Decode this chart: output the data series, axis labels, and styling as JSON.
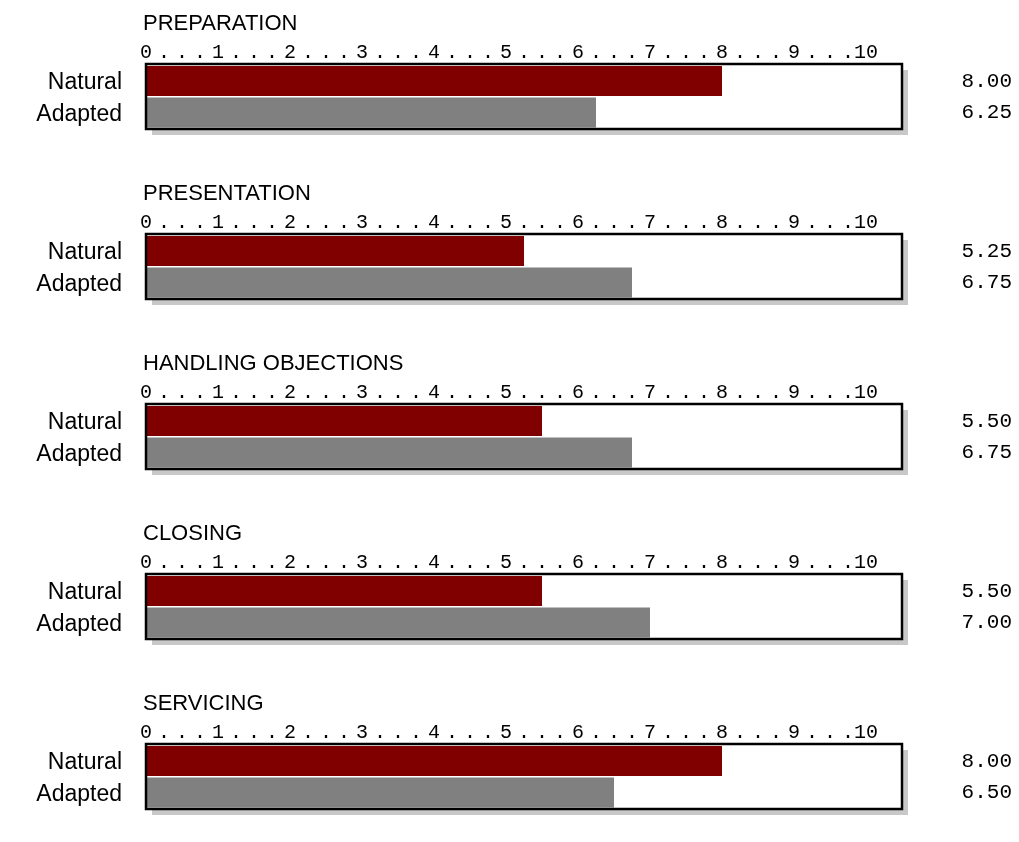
{
  "chart_data": [
    {
      "type": "bar",
      "orientation": "horizontal",
      "title": "PREPARATION",
      "categories": [
        "Natural",
        "Adapted"
      ],
      "values": [
        8.0,
        6.25
      ],
      "value_labels": [
        "8.00",
        "6.25"
      ],
      "colors": [
        "#800000",
        "#808080"
      ],
      "xlim": [
        0,
        10.5
      ],
      "xticks": [
        0,
        {
          "value": 0.25,
          "label": "."
        },
        {
          "value": 0.5,
          "label": "."
        },
        {
          "value": 0.75,
          "label": "."
        },
        1,
        {
          "value": 1.25,
          "label": "."
        },
        {
          "value": 1.5,
          "label": "."
        },
        {
          "value": 1.75,
          "label": "."
        },
        2,
        {
          "value": 2.25,
          "label": "."
        },
        {
          "value": 2.5,
          "label": "."
        },
        {
          "value": 2.75,
          "label": "."
        },
        3,
        {
          "value": 3.25,
          "label": "."
        },
        {
          "value": 3.5,
          "label": "."
        },
        {
          "value": 3.75,
          "label": "."
        },
        4,
        {
          "value": 4.25,
          "label": "."
        },
        {
          "value": 4.5,
          "label": "."
        },
        {
          "value": 4.75,
          "label": "."
        },
        5,
        {
          "value": 5.25,
          "label": "."
        },
        {
          "value": 5.5,
          "label": "."
        },
        {
          "value": 5.75,
          "label": "."
        },
        6,
        {
          "value": 6.25,
          "label": "."
        },
        {
          "value": 6.5,
          "label": "."
        },
        {
          "value": 6.75,
          "label": "."
        },
        7,
        {
          "value": 7.25,
          "label": "."
        },
        {
          "value": 7.5,
          "label": "."
        },
        {
          "value": 7.75,
          "label": "."
        },
        8,
        {
          "value": 8.25,
          "label": "."
        },
        {
          "value": 8.5,
          "label": "."
        },
        {
          "value": 8.75,
          "label": "."
        },
        9,
        {
          "value": 9.25,
          "label": "."
        },
        {
          "value": 9.5,
          "label": "."
        },
        {
          "value": 9.75,
          "label": "."
        },
        10
      ]
    },
    {
      "type": "bar",
      "orientation": "horizontal",
      "title": "PRESENTATION",
      "categories": [
        "Natural",
        "Adapted"
      ],
      "values": [
        5.25,
        6.75
      ],
      "value_labels": [
        "5.25",
        "6.75"
      ],
      "colors": [
        "#800000",
        "#808080"
      ],
      "xlim": [
        0,
        10.5
      ],
      "xticks": [
        0,
        {
          "value": 0.25,
          "label": "."
        },
        {
          "value": 0.5,
          "label": "."
        },
        {
          "value": 0.75,
          "label": "."
        },
        1,
        {
          "value": 1.25,
          "label": "."
        },
        {
          "value": 1.5,
          "label": "."
        },
        {
          "value": 1.75,
          "label": "."
        },
        2,
        {
          "value": 2.25,
          "label": "."
        },
        {
          "value": 2.5,
          "label": "."
        },
        {
          "value": 2.75,
          "label": "."
        },
        3,
        {
          "value": 3.25,
          "label": "."
        },
        {
          "value": 3.5,
          "label": "."
        },
        {
          "value": 3.75,
          "label": "."
        },
        4,
        {
          "value": 4.25,
          "label": "."
        },
        {
          "value": 4.5,
          "label": "."
        },
        {
          "value": 4.75,
          "label": "."
        },
        5,
        {
          "value": 5.25,
          "label": "."
        },
        {
          "value": 5.5,
          "label": "."
        },
        {
          "value": 5.75,
          "label": "."
        },
        6,
        {
          "value": 6.25,
          "label": "."
        },
        {
          "value": 6.5,
          "label": "."
        },
        {
          "value": 6.75,
          "label": "."
        },
        7,
        {
          "value": 7.25,
          "label": "."
        },
        {
          "value": 7.5,
          "label": "."
        },
        {
          "value": 7.75,
          "label": "."
        },
        8,
        {
          "value": 8.25,
          "label": "."
        },
        {
          "value": 8.5,
          "label": "."
        },
        {
          "value": 8.75,
          "label": "."
        },
        9,
        {
          "value": 9.25,
          "label": "."
        },
        {
          "value": 9.5,
          "label": "."
        },
        {
          "value": 9.75,
          "label": "."
        },
        10
      ]
    },
    {
      "type": "bar",
      "orientation": "horizontal",
      "title": "HANDLING OBJECTIONS",
      "categories": [
        "Natural",
        "Adapted"
      ],
      "values": [
        5.5,
        6.75
      ],
      "value_labels": [
        "5.50",
        "6.75"
      ],
      "colors": [
        "#800000",
        "#808080"
      ],
      "xlim": [
        0,
        10.5
      ],
      "xticks": [
        0,
        {
          "value": 0.25,
          "label": "."
        },
        {
          "value": 0.5,
          "label": "."
        },
        {
          "value": 0.75,
          "label": "."
        },
        1,
        {
          "value": 1.25,
          "label": "."
        },
        {
          "value": 1.5,
          "label": "."
        },
        {
          "value": 1.75,
          "label": "."
        },
        2,
        {
          "value": 2.25,
          "label": "."
        },
        {
          "value": 2.5,
          "label": "."
        },
        {
          "value": 2.75,
          "label": "."
        },
        3,
        {
          "value": 3.25,
          "label": "."
        },
        {
          "value": 3.5,
          "label": "."
        },
        {
          "value": 3.75,
          "label": "."
        },
        4,
        {
          "value": 4.25,
          "label": "."
        },
        {
          "value": 4.5,
          "label": "."
        },
        {
          "value": 4.75,
          "label": "."
        },
        5,
        {
          "value": 5.25,
          "label": "."
        },
        {
          "value": 5.5,
          "label": "."
        },
        {
          "value": 5.75,
          "label": "."
        },
        6,
        {
          "value": 6.25,
          "label": "."
        },
        {
          "value": 6.5,
          "label": "."
        },
        {
          "value": 6.75,
          "label": "."
        },
        7,
        {
          "value": 7.25,
          "label": "."
        },
        {
          "value": 7.5,
          "label": "."
        },
        {
          "value": 7.75,
          "label": "."
        },
        8,
        {
          "value": 8.25,
          "label": "."
        },
        {
          "value": 8.5,
          "label": "."
        },
        {
          "value": 8.75,
          "label": "."
        },
        9,
        {
          "value": 9.25,
          "label": "."
        },
        {
          "value": 9.5,
          "label": "."
        },
        {
          "value": 9.75,
          "label": "."
        },
        10
      ]
    },
    {
      "type": "bar",
      "orientation": "horizontal",
      "title": "CLOSING",
      "categories": [
        "Natural",
        "Adapted"
      ],
      "values": [
        5.5,
        7.0
      ],
      "value_labels": [
        "5.50",
        "7.00"
      ],
      "colors": [
        "#800000",
        "#808080"
      ],
      "xlim": [
        0,
        10.5
      ],
      "xticks": [
        0,
        {
          "value": 0.25,
          "label": "."
        },
        {
          "value": 0.5,
          "label": "."
        },
        {
          "value": 0.75,
          "label": "."
        },
        1,
        {
          "value": 1.25,
          "label": "."
        },
        {
          "value": 1.5,
          "label": "."
        },
        {
          "value": 1.75,
          "label": "."
        },
        2,
        {
          "value": 2.25,
          "label": "."
        },
        {
          "value": 2.5,
          "label": "."
        },
        {
          "value": 2.75,
          "label": "."
        },
        3,
        {
          "value": 3.25,
          "label": "."
        },
        {
          "value": 3.5,
          "label": "."
        },
        {
          "value": 3.75,
          "label": "."
        },
        4,
        {
          "value": 4.25,
          "label": "."
        },
        {
          "value": 4.5,
          "label": "."
        },
        {
          "value": 4.75,
          "label": "."
        },
        5,
        {
          "value": 5.25,
          "label": "."
        },
        {
          "value": 5.5,
          "label": "."
        },
        {
          "value": 5.75,
          "label": "."
        },
        6,
        {
          "value": 6.25,
          "label": "."
        },
        {
          "value": 6.5,
          "label": "."
        },
        {
          "value": 6.75,
          "label": "."
        },
        7,
        {
          "value": 7.25,
          "label": "."
        },
        {
          "value": 7.5,
          "label": "."
        },
        {
          "value": 7.75,
          "label": "."
        },
        8,
        {
          "value": 8.25,
          "label": "."
        },
        {
          "value": 8.5,
          "label": "."
        },
        {
          "value": 8.75,
          "label": "."
        },
        9,
        {
          "value": 9.25,
          "label": "."
        },
        {
          "value": 9.5,
          "label": "."
        },
        {
          "value": 9.75,
          "label": "."
        },
        10
      ]
    },
    {
      "type": "bar",
      "orientation": "horizontal",
      "title": "SERVICING",
      "categories": [
        "Natural",
        "Adapted"
      ],
      "values": [
        8.0,
        6.5
      ],
      "value_labels": [
        "8.00",
        "6.50"
      ],
      "colors": [
        "#800000",
        "#808080"
      ],
      "xlim": [
        0,
        10.5
      ],
      "xticks": [
        0,
        {
          "value": 0.25,
          "label": "."
        },
        {
          "value": 0.5,
          "label": "."
        },
        {
          "value": 0.75,
          "label": "."
        },
        1,
        {
          "value": 1.25,
          "label": "."
        },
        {
          "value": 1.5,
          "label": "."
        },
        {
          "value": 1.75,
          "label": "."
        },
        2,
        {
          "value": 2.25,
          "label": "."
        },
        {
          "value": 2.5,
          "label": "."
        },
        {
          "value": 2.75,
          "label": "."
        },
        3,
        {
          "value": 3.25,
          "label": "."
        },
        {
          "value": 3.5,
          "label": "."
        },
        {
          "value": 3.75,
          "label": "."
        },
        4,
        {
          "value": 4.25,
          "label": "."
        },
        {
          "value": 4.5,
          "label": "."
        },
        {
          "value": 4.75,
          "label": "."
        },
        5,
        {
          "value": 5.25,
          "label": "."
        },
        {
          "value": 5.5,
          "label": "."
        },
        {
          "value": 5.75,
          "label": "."
        },
        6,
        {
          "value": 6.25,
          "label": "."
        },
        {
          "value": 6.5,
          "label": "."
        },
        {
          "value": 6.75,
          "label": "."
        },
        7,
        {
          "value": 7.25,
          "label": "."
        },
        {
          "value": 7.5,
          "label": "."
        },
        {
          "value": 7.75,
          "label": "."
        },
        8,
        {
          "value": 8.25,
          "label": "."
        },
        {
          "value": 8.5,
          "label": "."
        },
        {
          "value": 8.75,
          "label": "."
        },
        9,
        {
          "value": 9.25,
          "label": "."
        },
        {
          "value": 9.5,
          "label": "."
        },
        {
          "value": 9.75,
          "label": "."
        },
        10
      ]
    }
  ]
}
